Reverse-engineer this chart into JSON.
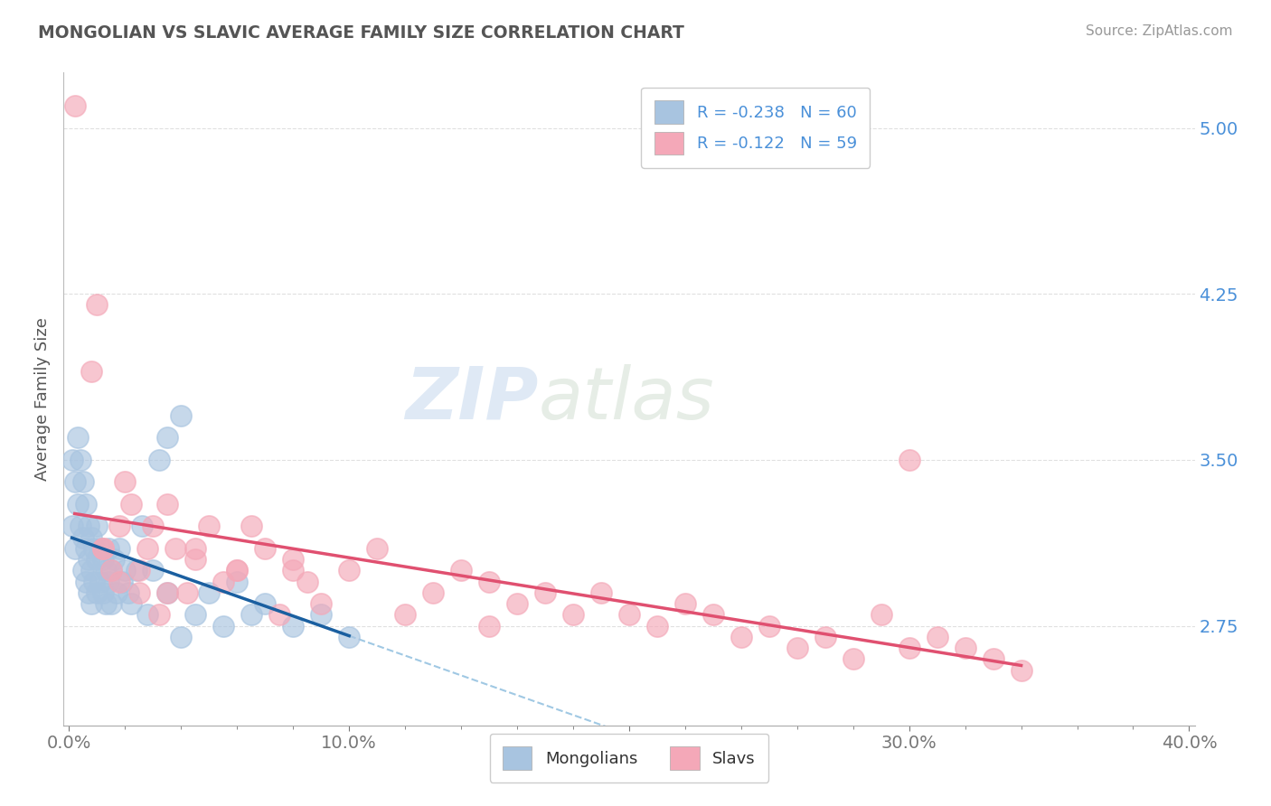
{
  "title": "MONGOLIAN VS SLAVIC AVERAGE FAMILY SIZE CORRELATION CHART",
  "source": "Source: ZipAtlas.com",
  "ylabel": "Average Family Size",
  "xlim": [
    -0.002,
    0.402
  ],
  "ylim": [
    2.3,
    5.25
  ],
  "yticks": [
    2.75,
    3.5,
    4.25,
    5.0
  ],
  "xtick_labels": [
    "0.0%",
    "",
    "",
    "",
    "10.0%",
    "",
    "",
    "",
    "",
    "20.0%",
    "",
    "",
    "",
    "",
    "30.0%",
    "",
    "",
    "",
    "",
    "40.0%"
  ],
  "xtick_vals": [
    0.0,
    0.02,
    0.04,
    0.06,
    0.1,
    0.12,
    0.14,
    0.16,
    0.18,
    0.2,
    0.22,
    0.24,
    0.26,
    0.28,
    0.3,
    0.32,
    0.34,
    0.36,
    0.38,
    0.4
  ],
  "mongolian_color": "#a8c4e0",
  "slavic_color": "#f4a8b8",
  "mongolian_line_color": "#1a5fa0",
  "slavic_line_color": "#e05070",
  "mongolian_R": -0.238,
  "mongolian_N": 60,
  "slavic_R": -0.122,
  "slavic_N": 59,
  "legend_mongolian_label": "Mongolians",
  "legend_slavic_label": "Slavs",
  "mongolian_x": [
    0.001,
    0.001,
    0.002,
    0.002,
    0.003,
    0.003,
    0.004,
    0.004,
    0.005,
    0.005,
    0.005,
    0.006,
    0.006,
    0.006,
    0.007,
    0.007,
    0.007,
    0.008,
    0.008,
    0.008,
    0.009,
    0.009,
    0.01,
    0.01,
    0.01,
    0.011,
    0.011,
    0.012,
    0.012,
    0.013,
    0.013,
    0.014,
    0.014,
    0.015,
    0.015,
    0.016,
    0.017,
    0.018,
    0.019,
    0.02,
    0.021,
    0.022,
    0.024,
    0.026,
    0.028,
    0.03,
    0.032,
    0.035,
    0.04,
    0.045,
    0.05,
    0.055,
    0.06,
    0.065,
    0.07,
    0.08,
    0.09,
    0.1,
    0.035,
    0.04
  ],
  "mongolian_y": [
    3.5,
    3.2,
    3.4,
    3.1,
    3.6,
    3.3,
    3.5,
    3.2,
    3.4,
    3.15,
    3.0,
    3.3,
    3.1,
    2.95,
    3.2,
    3.05,
    2.9,
    3.15,
    3.0,
    2.85,
    3.1,
    2.95,
    3.2,
    3.05,
    2.9,
    3.1,
    2.95,
    3.05,
    2.9,
    3.0,
    2.85,
    3.1,
    2.95,
    3.0,
    2.85,
    3.05,
    2.9,
    3.1,
    2.95,
    3.0,
    2.9,
    2.85,
    3.0,
    3.2,
    2.8,
    3.0,
    3.5,
    2.9,
    2.7,
    2.8,
    2.9,
    2.75,
    2.95,
    2.8,
    2.85,
    2.75,
    2.8,
    2.7,
    3.6,
    3.7
  ],
  "slavic_x": [
    0.002,
    0.008,
    0.01,
    0.012,
    0.015,
    0.018,
    0.02,
    0.022,
    0.025,
    0.028,
    0.03,
    0.032,
    0.035,
    0.038,
    0.042,
    0.045,
    0.05,
    0.055,
    0.06,
    0.065,
    0.07,
    0.075,
    0.08,
    0.085,
    0.09,
    0.1,
    0.11,
    0.12,
    0.13,
    0.14,
    0.15,
    0.16,
    0.17,
    0.18,
    0.19,
    0.2,
    0.21,
    0.22,
    0.23,
    0.24,
    0.25,
    0.26,
    0.27,
    0.28,
    0.29,
    0.3,
    0.31,
    0.32,
    0.33,
    0.34,
    0.012,
    0.018,
    0.025,
    0.035,
    0.045,
    0.06,
    0.08,
    0.15,
    0.3
  ],
  "slavic_y": [
    5.1,
    3.9,
    4.2,
    3.1,
    3.0,
    3.2,
    3.4,
    3.3,
    2.9,
    3.1,
    3.2,
    2.8,
    3.3,
    3.1,
    2.9,
    3.05,
    3.2,
    2.95,
    3.0,
    3.2,
    3.1,
    2.8,
    3.0,
    2.95,
    2.85,
    3.0,
    3.1,
    2.8,
    2.9,
    3.0,
    2.95,
    2.85,
    2.9,
    2.8,
    2.9,
    2.8,
    2.75,
    2.85,
    2.8,
    2.7,
    2.75,
    2.65,
    2.7,
    2.6,
    2.8,
    3.5,
    2.7,
    2.65,
    2.6,
    2.55,
    3.1,
    2.95,
    3.0,
    2.9,
    3.1,
    3.0,
    3.05,
    2.75,
    2.65
  ],
  "watermark_zip": "ZIP",
  "watermark_atlas": "atlas",
  "title_color": "#555555",
  "axis_label_color": "#555555",
  "tick_color_y": "#4a90d9",
  "tick_color_x": "#777777",
  "background_color": "#ffffff",
  "grid_color": "#cccccc"
}
